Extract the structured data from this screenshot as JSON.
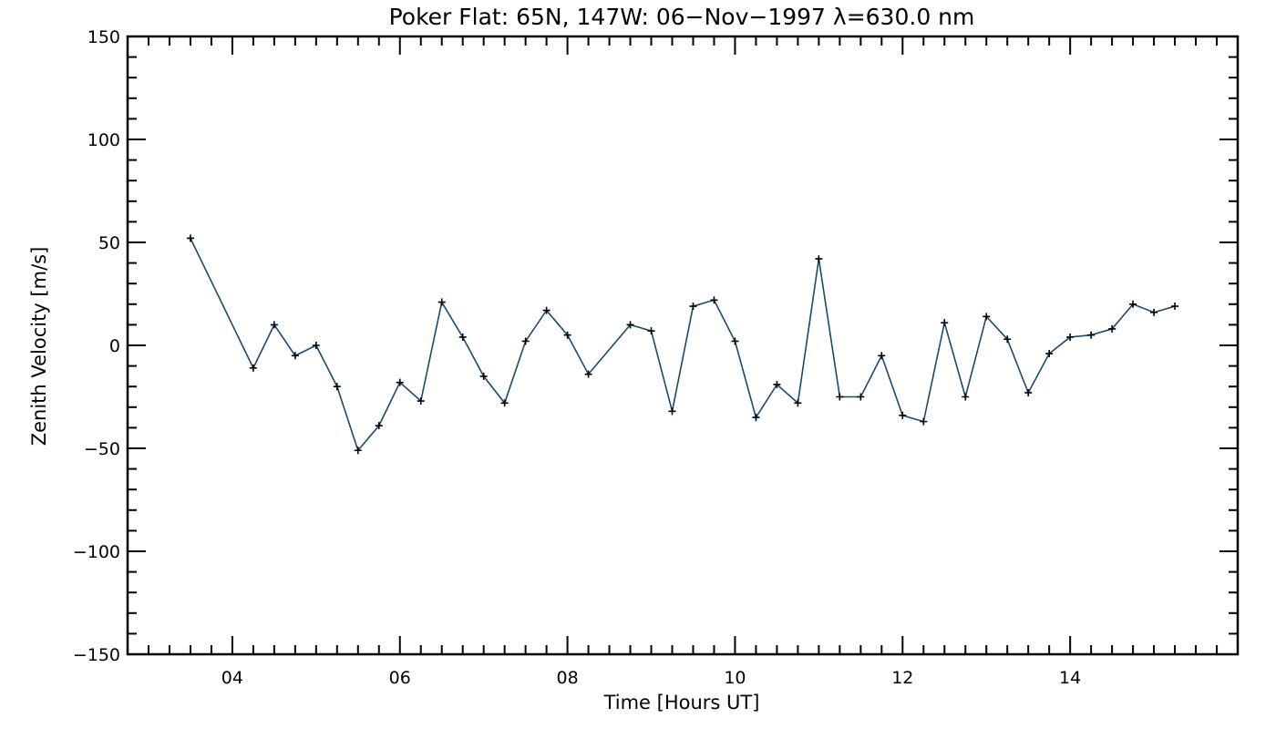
{
  "chart_data": {
    "type": "line",
    "title": "Poker Flat: 65N, 147W: 06−Nov−1997 λ=630.0 nm",
    "xlabel": "Time [Hours UT]",
    "ylabel": "Zenith Velocity [m/s]",
    "xlim": [
      2.75,
      16.0
    ],
    "ylim": [
      -150,
      150
    ],
    "x_ticks": [
      4,
      6,
      8,
      10,
      12,
      14
    ],
    "x_tick_labels": [
      "04",
      "06",
      "08",
      "10",
      "12",
      "14"
    ],
    "y_ticks": [
      -150,
      -100,
      -50,
      0,
      50,
      100,
      150
    ],
    "y_tick_labels": [
      "−150",
      "−100",
      "−50",
      "0",
      "50",
      "100",
      "150"
    ],
    "grid": false,
    "line_color": "#1a4a6e",
    "series": [
      {
        "name": "Zenith Velocity",
        "x": [
          3.5,
          4.25,
          4.5,
          4.75,
          5.0,
          5.25,
          5.5,
          5.75,
          6.0,
          6.25,
          6.5,
          6.75,
          7.0,
          7.25,
          7.5,
          7.75,
          8.0,
          8.25,
          8.75,
          9.0,
          9.25,
          9.5,
          9.75,
          10.0,
          10.25,
          10.5,
          10.75,
          11.0,
          11.25,
          11.5,
          11.75,
          12.0,
          12.25,
          12.5,
          12.75,
          13.0,
          13.25,
          13.5,
          13.75,
          14.0,
          14.25,
          14.5,
          14.75,
          15.0,
          15.25
        ],
        "values": [
          52,
          -11,
          10,
          -5,
          0,
          -20,
          -51,
          -39,
          -18,
          -27,
          21,
          4,
          -15,
          -28,
          2,
          17,
          5,
          -14,
          10,
          7,
          -32,
          19,
          22,
          2,
          -35,
          -19,
          -28,
          42,
          -25,
          -25,
          -5,
          -34,
          -37,
          11,
          -25,
          14,
          3,
          -23,
          -4,
          4,
          5,
          8,
          20,
          16,
          19
        ]
      }
    ]
  }
}
